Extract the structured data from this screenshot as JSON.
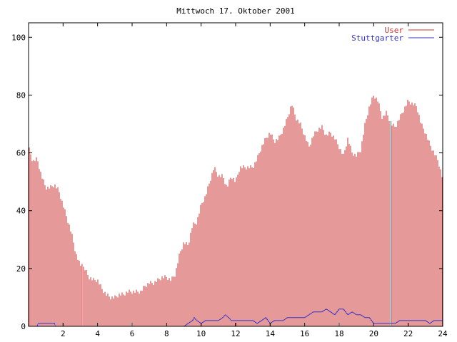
{
  "chart_data": {
    "type": "bar",
    "title": "Mittwoch 17. Oktober 2001",
    "xlabel": "",
    "ylabel": "",
    "xlim": [
      0,
      24
    ],
    "ylim": [
      0,
      105
    ],
    "grid": false,
    "legend_position": "top-right",
    "x_ticks": [
      2,
      4,
      6,
      8,
      10,
      12,
      14,
      16,
      18,
      20,
      22,
      24
    ],
    "y_ticks": [
      0,
      20,
      40,
      60,
      80,
      100
    ],
    "series": [
      {
        "name": "User",
        "type": "bar",
        "color": "#cc3333",
        "points": [
          [
            0.0,
            62
          ],
          [
            0.25,
            57
          ],
          [
            0.5,
            58
          ],
          [
            0.75,
            52
          ],
          [
            1.0,
            48
          ],
          [
            1.25,
            48
          ],
          [
            1.5,
            49
          ],
          [
            1.75,
            47
          ],
          [
            2.0,
            42
          ],
          [
            2.25,
            37
          ],
          [
            2.5,
            32
          ],
          [
            2.75,
            25
          ],
          [
            3.0,
            21
          ],
          [
            3.25,
            20
          ],
          [
            3.5,
            17
          ],
          [
            3.75,
            16
          ],
          [
            4.0,
            16
          ],
          [
            4.25,
            13
          ],
          [
            4.5,
            11
          ],
          [
            4.75,
            10
          ],
          [
            5.0,
            10
          ],
          [
            5.25,
            11
          ],
          [
            5.5,
            11
          ],
          [
            5.75,
            12
          ],
          [
            6.0,
            12
          ],
          [
            6.25,
            12
          ],
          [
            6.5,
            12
          ],
          [
            6.75,
            14
          ],
          [
            7.0,
            15
          ],
          [
            7.25,
            15
          ],
          [
            7.5,
            16
          ],
          [
            7.75,
            17
          ],
          [
            8.0,
            17
          ],
          [
            8.25,
            16
          ],
          [
            8.5,
            18
          ],
          [
            8.75,
            25
          ],
          [
            9.0,
            29
          ],
          [
            9.25,
            28
          ],
          [
            9.5,
            35
          ],
          [
            9.75,
            36
          ],
          [
            10.0,
            42
          ],
          [
            10.25,
            45
          ],
          [
            10.5,
            50
          ],
          [
            10.75,
            55
          ],
          [
            11.0,
            52
          ],
          [
            11.25,
            52
          ],
          [
            11.5,
            48
          ],
          [
            11.75,
            52
          ],
          [
            12.0,
            50
          ],
          [
            12.25,
            55
          ],
          [
            12.5,
            55
          ],
          [
            12.75,
            55
          ],
          [
            13.0,
            55
          ],
          [
            13.25,
            58
          ],
          [
            13.5,
            62
          ],
          [
            13.75,
            65
          ],
          [
            14.0,
            67
          ],
          [
            14.25,
            64
          ],
          [
            14.5,
            65
          ],
          [
            14.75,
            68
          ],
          [
            15.0,
            72
          ],
          [
            15.25,
            77
          ],
          [
            15.5,
            72
          ],
          [
            15.75,
            70
          ],
          [
            16.0,
            66
          ],
          [
            16.25,
            62
          ],
          [
            16.5,
            66
          ],
          [
            16.75,
            68
          ],
          [
            17.0,
            69
          ],
          [
            17.25,
            66
          ],
          [
            17.5,
            67
          ],
          [
            17.75,
            65
          ],
          [
            18.0,
            62
          ],
          [
            18.25,
            59
          ],
          [
            18.5,
            65
          ],
          [
            18.75,
            60
          ],
          [
            19.0,
            59
          ],
          [
            19.25,
            61
          ],
          [
            19.5,
            70
          ],
          [
            19.75,
            76
          ],
          [
            20.0,
            80
          ],
          [
            20.25,
            78
          ],
          [
            20.5,
            72
          ],
          [
            20.75,
            74
          ],
          [
            21.0,
            70
          ],
          [
            21.25,
            69
          ],
          [
            21.5,
            72
          ],
          [
            21.75,
            75
          ],
          [
            22.0,
            78
          ],
          [
            22.25,
            77
          ],
          [
            22.5,
            76
          ],
          [
            22.75,
            70
          ],
          [
            23.0,
            67
          ],
          [
            23.25,
            63
          ],
          [
            23.5,
            60
          ],
          [
            23.75,
            57
          ],
          [
            24.0,
            51
          ]
        ],
        "gaps": [
          3.1,
          21.0
        ]
      },
      {
        "name": "Stuttgarter",
        "type": "line",
        "color": "#3333cc",
        "points": [
          [
            0.0,
            0
          ],
          [
            0.5,
            0
          ],
          [
            0.55,
            1
          ],
          [
            1.5,
            1
          ],
          [
            1.55,
            0
          ],
          [
            9.0,
            0
          ],
          [
            9.25,
            1
          ],
          [
            9.5,
            2
          ],
          [
            9.6,
            3
          ],
          [
            9.75,
            2
          ],
          [
            10.0,
            1
          ],
          [
            10.25,
            2
          ],
          [
            11.0,
            2
          ],
          [
            11.25,
            3
          ],
          [
            11.4,
            4
          ],
          [
            11.6,
            3
          ],
          [
            11.75,
            2
          ],
          [
            12.0,
            2
          ],
          [
            13.0,
            2
          ],
          [
            13.25,
            1
          ],
          [
            13.5,
            2
          ],
          [
            13.75,
            3
          ],
          [
            14.0,
            1
          ],
          [
            14.25,
            2
          ],
          [
            14.75,
            2
          ],
          [
            15.0,
            3
          ],
          [
            15.5,
            3
          ],
          [
            16.0,
            3
          ],
          [
            16.25,
            4
          ],
          [
            16.5,
            5
          ],
          [
            16.75,
            5
          ],
          [
            17.0,
            5
          ],
          [
            17.25,
            6
          ],
          [
            17.5,
            5
          ],
          [
            17.75,
            4
          ],
          [
            18.0,
            6
          ],
          [
            18.25,
            6
          ],
          [
            18.5,
            4
          ],
          [
            18.75,
            5
          ],
          [
            19.0,
            4
          ],
          [
            19.25,
            4
          ],
          [
            19.5,
            3
          ],
          [
            19.75,
            3
          ],
          [
            20.0,
            1
          ],
          [
            21.0,
            1
          ],
          [
            21.25,
            1
          ],
          [
            21.5,
            2
          ],
          [
            22.0,
            2
          ],
          [
            23.0,
            2
          ],
          [
            23.25,
            1
          ],
          [
            23.5,
            2
          ],
          [
            24.0,
            2
          ]
        ]
      }
    ]
  }
}
